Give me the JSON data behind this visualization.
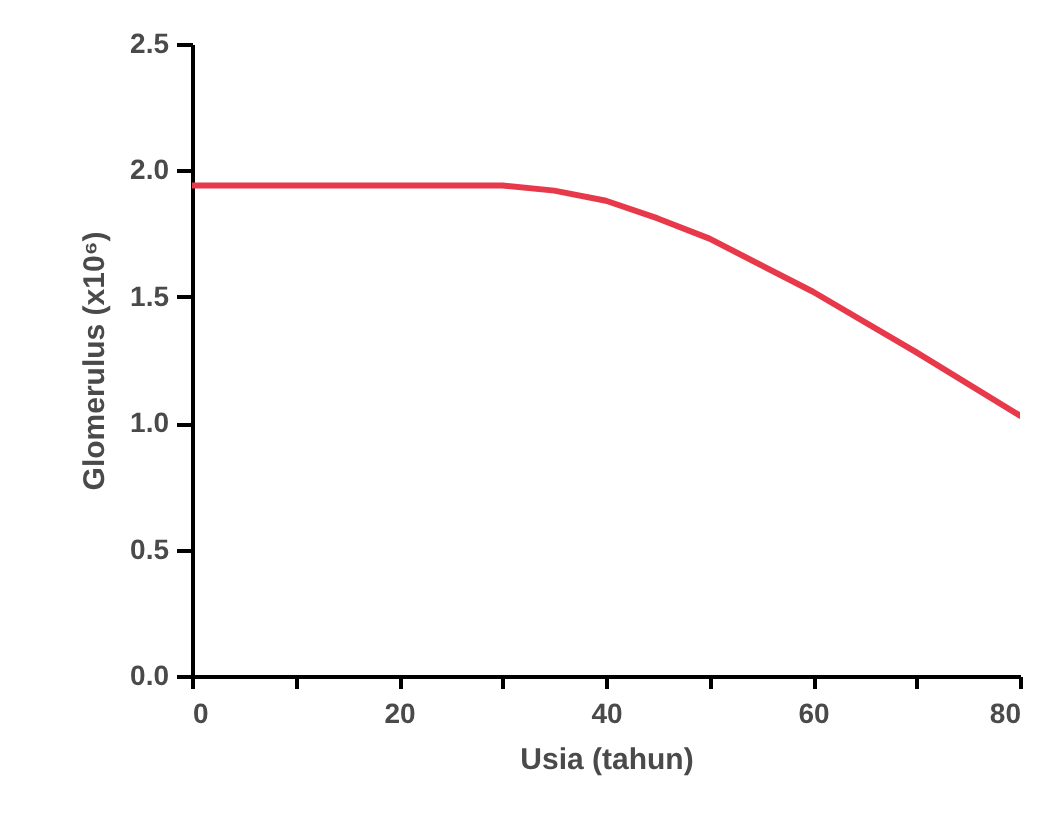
{
  "chart_data": {
    "type": "line",
    "xlabel": "Usia (tahun)",
    "ylabel": "Glomerulus (x10⁶)",
    "xlim": [
      0,
      80
    ],
    "xticks": [
      0,
      {
        "value": 10,
        "label": null
      },
      20,
      {
        "value": 30,
        "label": null
      },
      40,
      {
        "value": 50,
        "label": null
      },
      60,
      {
        "value": 70,
        "label": null
      },
      80
    ],
    "ylim": [
      0,
      2.5
    ],
    "yticks": [
      {
        "value": 0,
        "label": "0.0"
      },
      0.5,
      {
        "value": 1,
        "label": "1.0"
      },
      1.5,
      {
        "value": 2,
        "label": "2.0"
      },
      2.5
    ],
    "grid": false,
    "marker": "none",
    "line_style": "solid",
    "series": [
      {
        "color": "#e8394a",
        "x": [
          0,
          30,
          35,
          40,
          45,
          50,
          60,
          70,
          80
        ],
        "values": [
          1.94,
          1.94,
          1.92,
          1.88,
          1.81,
          1.73,
          1.52,
          1.28,
          1.03
        ]
      }
    ]
  }
}
